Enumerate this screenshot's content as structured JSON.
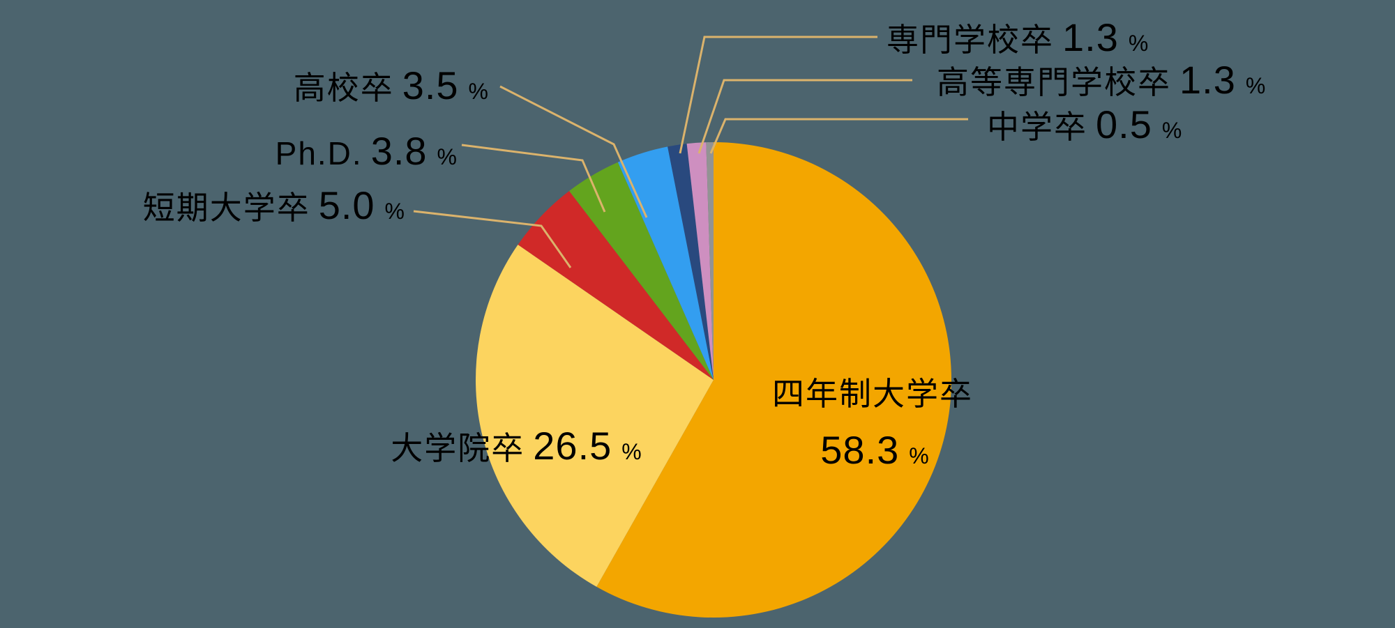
{
  "chart_data": {
    "type": "pie",
    "unit": "%",
    "legend": "none",
    "start_angle_deg": 0,
    "direction": "clockwise",
    "background_color": "#4C646E",
    "leader_line_color": "#DBB36C",
    "label_text_color": "#000000",
    "slices": [
      {
        "id": "four-year-university",
        "label": "四年制大学卒",
        "value": 58.3,
        "display": "58.3",
        "color": "#F3A600",
        "label_position": "inside"
      },
      {
        "id": "graduate-school",
        "label": "大学院卒",
        "value": 26.5,
        "display": "26.5",
        "color": "#FCD45F",
        "label_position": "inside"
      },
      {
        "id": "junior-college",
        "label": "短期大学卒",
        "value": 5.0,
        "display": "5.0",
        "color": "#D02928",
        "label_position": "outside-left"
      },
      {
        "id": "phd",
        "label": "Ph.D.",
        "value": 3.8,
        "display": "3.8",
        "color": "#63A41E",
        "label_position": "outside-left"
      },
      {
        "id": "high-school",
        "label": "高校卒",
        "value": 3.5,
        "display": "3.5",
        "color": "#339EF0",
        "label_position": "outside-left"
      },
      {
        "id": "vocational-school",
        "label": "専門学校卒",
        "value": 1.3,
        "display": "1.3",
        "color": "#29497E",
        "label_position": "outside-right"
      },
      {
        "id": "technical-college",
        "label": "高等専門学校卒",
        "value": 1.3,
        "display": "1.3",
        "color": "#CE8FC0",
        "label_position": "outside-right"
      },
      {
        "id": "junior-high-school",
        "label": "中学卒",
        "value": 0.5,
        "display": "0.5",
        "color": "#939393",
        "label_position": "outside-right"
      }
    ]
  }
}
